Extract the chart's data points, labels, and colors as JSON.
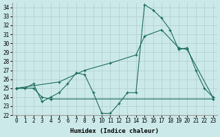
{
  "xlabel": "Humidex (Indice chaleur)",
  "xlim": [
    -0.5,
    23.5
  ],
  "ylim": [
    22,
    34.5
  ],
  "yticks": [
    22,
    23,
    24,
    25,
    26,
    27,
    28,
    29,
    30,
    31,
    32,
    33,
    34
  ],
  "xticks": [
    0,
    1,
    2,
    3,
    4,
    5,
    6,
    7,
    8,
    9,
    10,
    11,
    12,
    13,
    14,
    15,
    16,
    17,
    18,
    19,
    20,
    21,
    22,
    23
  ],
  "bg_color": "#cce9e9",
  "grid_color": "#b0cccc",
  "line_color": "#1a6b5a",
  "line1_x": [
    0,
    1,
    2,
    3,
    4,
    5,
    6,
    7,
    8,
    9,
    10,
    11,
    12,
    13,
    14,
    15,
    16,
    17,
    18,
    19,
    20,
    21,
    22,
    23
  ],
  "line1_y": [
    25.0,
    25.0,
    25.5,
    23.5,
    24.0,
    24.5,
    25.5,
    26.7,
    26.5,
    24.5,
    22.2,
    22.2,
    23.3,
    24.5,
    24.5,
    34.3,
    33.7,
    32.8,
    31.5,
    29.3,
    29.5,
    27.0,
    25.0,
    24.0
  ],
  "line2_x": [
    0,
    2,
    3,
    4,
    23
  ],
  "line2_y": [
    25.0,
    25.0,
    24.0,
    23.8,
    23.8
  ],
  "line3_x": [
    0,
    5,
    8,
    11,
    14,
    15,
    17,
    19,
    20,
    23
  ],
  "line3_y": [
    25.0,
    25.7,
    27.0,
    27.8,
    28.7,
    30.8,
    31.5,
    29.5,
    29.3,
    24.0
  ]
}
